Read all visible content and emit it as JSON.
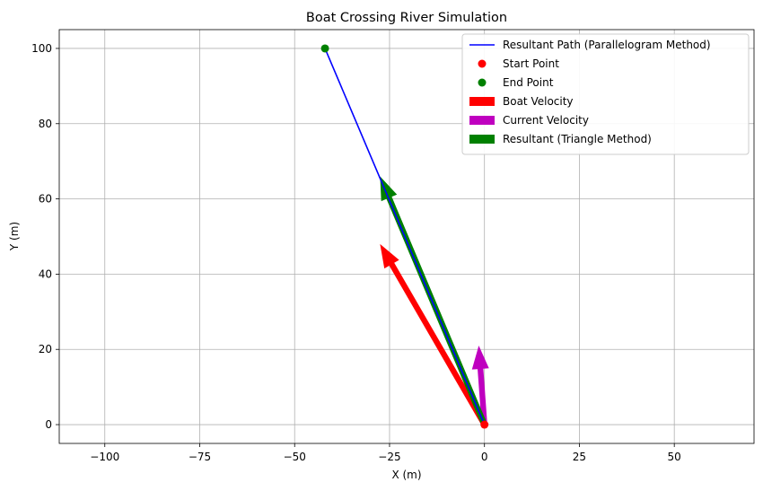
{
  "chart_data": {
    "type": "line",
    "title": "Boat Crossing River Simulation",
    "xlabel": "X (m)",
    "ylabel": "Y (m)",
    "xlim": [
      -112,
      71
    ],
    "ylim": [
      -5,
      105
    ],
    "xticks": [
      -100,
      -75,
      -50,
      -25,
      0,
      25,
      50
    ],
    "xtick_labels": [
      "−100",
      "−75",
      "−50",
      "−25",
      "0",
      "25",
      "50"
    ],
    "yticks": [
      0,
      20,
      40,
      60,
      80,
      100
    ],
    "ytick_labels": [
      "0",
      "20",
      "40",
      "60",
      "80",
      "100"
    ],
    "grid": true,
    "legend_position": "top-right",
    "colors": {
      "path": "#0000ff",
      "start": "#ff0000",
      "end": "#008000",
      "boat": "#ff0000",
      "current": "#bf00bf",
      "resultant": "#008000"
    },
    "series": [
      {
        "name": "Resultant Path (Parallelogram Method)",
        "kind": "line",
        "x": [
          0,
          -42
        ],
        "y": [
          0,
          100
        ]
      },
      {
        "name": "Start Point",
        "kind": "scatter",
        "x": [
          0
        ],
        "y": [
          0
        ]
      },
      {
        "name": "End Point",
        "kind": "scatter",
        "x": [
          -42
        ],
        "y": [
          100
        ]
      }
    ],
    "arrows": [
      {
        "name": "Boat Velocity",
        "x": 0,
        "y": 0,
        "dx": -27.5,
        "dy": 48
      },
      {
        "name": "Current Velocity",
        "x": 0,
        "y": 0,
        "dx": -1.5,
        "dy": 21
      },
      {
        "name": "Resultant (Triangle Method)",
        "x": 0,
        "y": 0,
        "dx": -27.5,
        "dy": 66
      }
    ],
    "legend": [
      {
        "label": "Resultant Path (Parallelogram Method)",
        "marker": "line",
        "color": "#0000ff"
      },
      {
        "label": "Start Point",
        "marker": "dot",
        "color": "#ff0000"
      },
      {
        "label": "End Point",
        "marker": "dot",
        "color": "#008000"
      },
      {
        "label": "Boat Velocity",
        "marker": "patch",
        "color": "#ff0000"
      },
      {
        "label": "Current Velocity",
        "marker": "patch",
        "color": "#bf00bf"
      },
      {
        "label": "Resultant (Triangle Method)",
        "marker": "patch",
        "color": "#008000"
      }
    ]
  }
}
